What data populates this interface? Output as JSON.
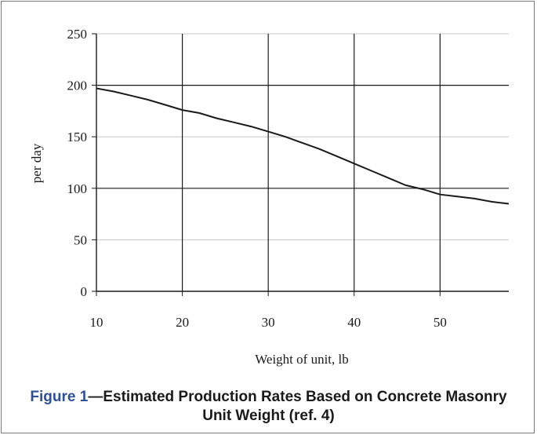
{
  "chart_data": {
    "type": "line",
    "xlabel": "Weight of unit, lb",
    "ylabel": "per day",
    "xlim": [
      10,
      58
    ],
    "ylim": [
      0,
      250
    ],
    "xticks": [
      "10",
      "20",
      "30",
      "40",
      "50"
    ],
    "yticks": [
      "0",
      "50",
      "100",
      "150",
      "200",
      "250"
    ],
    "grid": true,
    "series": [
      {
        "x": [
          10,
          12,
          14,
          16,
          18,
          20,
          22,
          24,
          26,
          28,
          30,
          32,
          34,
          36,
          38,
          40,
          42,
          44,
          46,
          48,
          50,
          52,
          54,
          56,
          58
        ],
        "y": [
          197,
          194,
          190,
          186,
          181,
          176,
          173,
          168,
          164,
          160,
          155,
          150,
          144,
          138,
          131,
          124,
          117,
          110,
          103,
          99,
          94,
          92,
          90,
          87,
          85
        ]
      }
    ]
  },
  "caption": {
    "figure_label": "Figure 1",
    "title": "—Estimated Production Rates Based on Concrete Masonry Unit Weight (ref. 4)"
  }
}
